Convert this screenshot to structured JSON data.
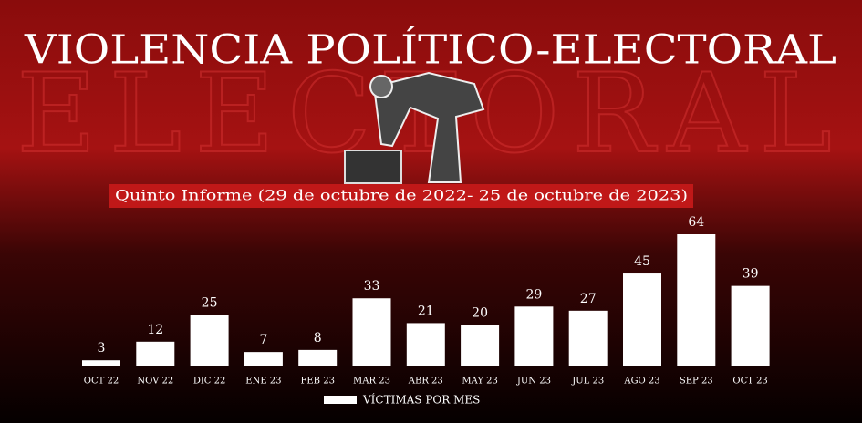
{
  "chart_data": {
    "type": "bar",
    "title": "VIOLENCIA POLÍTICO-ELECTORAL",
    "background_text": "ELECTORAL",
    "subtitle": "Quinto Informe (29 de octubre de 2022- 25 de octubre de 2023)",
    "categories": [
      "OCT 22",
      "NOV 22",
      "DIC 22",
      "ENE 23",
      "FEB 23",
      "MAR 23",
      "ABR 23",
      "MAY 23",
      "JUN 23",
      "JUL 23",
      "AGO 23",
      "SEP 23",
      "OCT 23"
    ],
    "series": [
      {
        "name": "VÍCTIMAS POR MES",
        "color": "#ffffff",
        "values": [
          3,
          12,
          25,
          7,
          8,
          33,
          21,
          20,
          29,
          27,
          45,
          64,
          39
        ]
      }
    ]
  }
}
